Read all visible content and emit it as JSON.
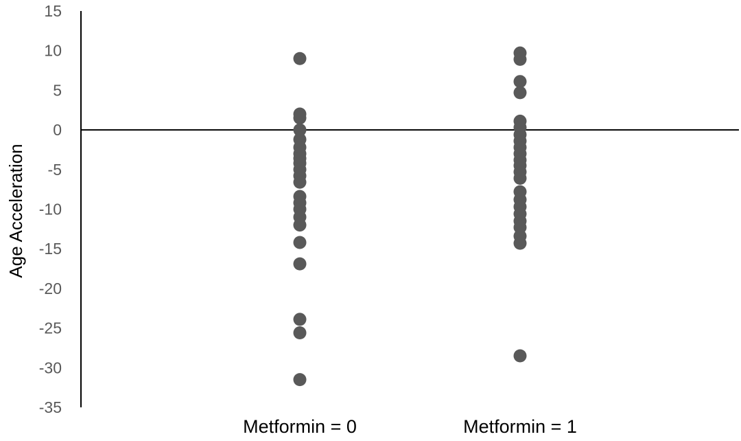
{
  "chart_data": {
    "type": "scatter",
    "title": "",
    "xlabel": "",
    "ylabel": "Age Acceleration",
    "categories": [
      "Metformin = 0",
      "Metformin = 1"
    ],
    "ylim": [
      -35,
      15
    ],
    "yticks": [
      15,
      10,
      5,
      0,
      -5,
      -10,
      -15,
      -20,
      -25,
      -30,
      -35
    ],
    "grid": false,
    "legend": "none",
    "point_color": "#595959",
    "series": [
      {
        "category": "Metformin = 0",
        "values": [
          9,
          2,
          1.5,
          0,
          -1.2,
          -2.2,
          -3,
          -3.6,
          -4.2,
          -5,
          -5.8,
          -6.6,
          -8.4,
          -9.2,
          -10,
          -11,
          -12,
          -14.2,
          -16.9,
          -23.9,
          -25.6,
          -31.5
        ]
      },
      {
        "category": "Metformin = 1",
        "values": [
          9.7,
          8.9,
          6.1,
          4.7,
          1.1,
          0.3,
          -0.6,
          -1.4,
          -2.2,
          -3,
          -3.8,
          -4.5,
          -5.3,
          -6.1,
          -7.8,
          -8.8,
          -9.7,
          -10.6,
          -11.5,
          -12.3,
          -13.4,
          -14.3,
          -28.5
        ]
      }
    ]
  }
}
